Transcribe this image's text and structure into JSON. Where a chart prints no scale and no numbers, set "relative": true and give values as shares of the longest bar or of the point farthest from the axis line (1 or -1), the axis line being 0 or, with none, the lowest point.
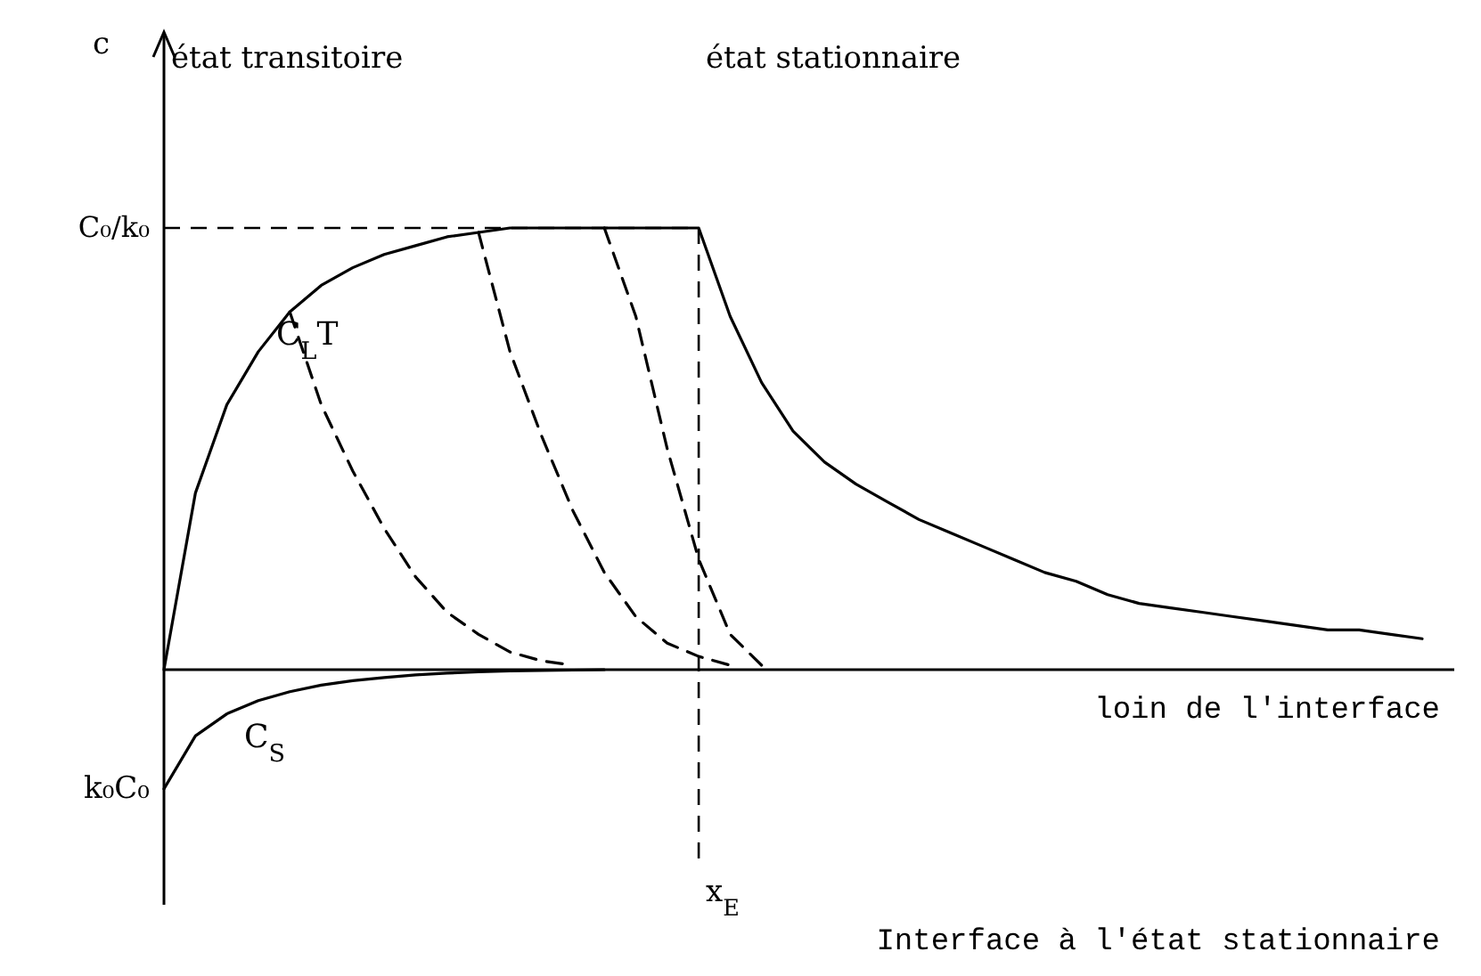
{
  "chart_data": {
    "type": "line",
    "relative": true,
    "categories": [
      null,
      null,
      null,
      null,
      null,
      null,
      null,
      null,
      null,
      null,
      null,
      null,
      null,
      null,
      null,
      null,
      null,
      null,
      null,
      null,
      null,
      null,
      null,
      null,
      null,
      null,
      null,
      null,
      null,
      null,
      null,
      null,
      null,
      null,
      null,
      null,
      null,
      null,
      null,
      null,
      null
    ],
    "annotations": [
      "état transitoire",
      "état stationnaire",
      "loin de l'interface",
      "Interface à l'état stationnaire",
      "k₀C₀",
      "c",
      "x$_{E}$"
    ],
    "ref_lines": [
      {
        "axis": "y",
        "value": 1,
        "label": "C₀/k₀",
        "line_style": "dashed",
        "color": "#000000"
      }
    ],
    "series": [
      {
        "name": "C$_{L}$T",
        "color": "#000000",
        "line_style": "solid",
        "values": [
          0,
          0.4,
          0.6,
          0.72,
          0.81,
          0.87,
          0.91,
          0.94,
          0.96,
          0.98,
          0.99,
          1.0,
          1.0,
          1.0,
          1.0,
          1.0,
          1.0,
          1.0,
          0.8,
          0.65,
          0.54,
          0.47,
          0.42,
          0.38,
          0.34,
          0.31,
          0.28,
          0.25,
          0.22,
          0.2,
          0.17,
          0.15,
          0.14,
          0.13,
          0.12,
          0.11,
          0.1,
          0.09,
          0.09,
          0.08,
          0.07
        ]
      },
      {
        "color": "#000000",
        "line_style": "dashed",
        "values": [
          null,
          null,
          null,
          null,
          0.81,
          0.6,
          0.45,
          0.32,
          0.21,
          0.13,
          0.08,
          0.04,
          0.02,
          0.01,
          null,
          null,
          null,
          null,
          null,
          null,
          null,
          null,
          null,
          null,
          null,
          null,
          null,
          null,
          null,
          null,
          null,
          null,
          null,
          null,
          null,
          null,
          null,
          null,
          null,
          null,
          null
        ]
      },
      {
        "color": "#000000",
        "line_style": "dashed",
        "values": [
          null,
          null,
          null,
          null,
          null,
          null,
          null,
          null,
          null,
          null,
          0.99,
          0.72,
          0.53,
          0.36,
          0.22,
          0.12,
          0.06,
          0.03,
          0.01,
          null,
          null,
          null,
          null,
          null,
          null,
          null,
          null,
          null,
          null,
          null,
          null,
          null,
          null,
          null,
          null,
          null,
          null,
          null,
          null,
          null,
          null
        ]
      },
      {
        "color": "#000000",
        "line_style": "dashed",
        "values": [
          null,
          null,
          null,
          null,
          null,
          null,
          null,
          null,
          null,
          null,
          null,
          null,
          null,
          null,
          1.0,
          0.8,
          0.5,
          0.25,
          0.08,
          0.01,
          null,
          null,
          null,
          null,
          null,
          null,
          null,
          null,
          null,
          null,
          null,
          null,
          null,
          null,
          null,
          null,
          null,
          null,
          null,
          null,
          null
        ]
      },
      {
        "name": "C$_{S}$",
        "color": "#000000",
        "line_style": "solid",
        "values": [
          -0.27,
          -0.15,
          -0.1,
          -0.07,
          -0.05,
          -0.035,
          -0.025,
          -0.018,
          -0.012,
          -0.008,
          -0.005,
          -0.003,
          -0.002,
          -0.001,
          0,
          null,
          null,
          null,
          null,
          null,
          null,
          null,
          null,
          null,
          null,
          null,
          null,
          null,
          null,
          null,
          null,
          null,
          null,
          null,
          null,
          null,
          null,
          null,
          null,
          null,
          null
        ]
      }
    ]
  }
}
